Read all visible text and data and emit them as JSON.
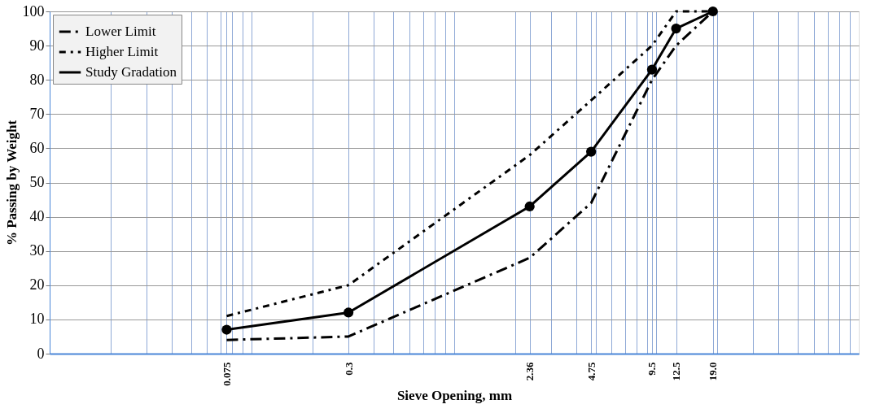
{
  "chart_data": {
    "type": "line",
    "xlabel": "Sieve Opening, mm",
    "ylabel": "% Passing by Weight",
    "log": "x",
    "grid": true,
    "legend": "top left",
    "xlim": [
      0.01,
      100
    ],
    "ylim": [
      0,
      100
    ],
    "yticks": [
      0,
      10,
      20,
      30,
      40,
      50,
      60,
      70,
      80,
      90,
      100
    ],
    "xticks": [
      {
        "value": 0.02,
        "label": null
      },
      {
        "value": 0.03,
        "label": null
      },
      {
        "value": 0.04,
        "label": null
      },
      {
        "value": 0.05,
        "label": null
      },
      {
        "value": 0.06,
        "label": null
      },
      {
        "value": 0.07,
        "label": null
      },
      {
        "value": 0.075,
        "label": "0.075"
      },
      {
        "value": 0.08,
        "label": null
      },
      {
        "value": 0.09,
        "label": null
      },
      {
        "value": 0.1,
        "label": null
      },
      {
        "value": 0.2,
        "label": null
      },
      {
        "value": 0.3,
        "label": "0.3"
      },
      {
        "value": 0.4,
        "label": null
      },
      {
        "value": 0.5,
        "label": null
      },
      {
        "value": 0.6,
        "label": null
      },
      {
        "value": 0.7,
        "label": null
      },
      {
        "value": 0.8,
        "label": null
      },
      {
        "value": 0.9,
        "label": null
      },
      {
        "value": 1,
        "label": null
      },
      {
        "value": 2,
        "label": null
      },
      {
        "value": 2.36,
        "label": "2.36"
      },
      {
        "value": 3,
        "label": null
      },
      {
        "value": 4,
        "label": null
      },
      {
        "value": 4.75,
        "label": "4.75"
      },
      {
        "value": 5,
        "label": null
      },
      {
        "value": 6,
        "label": null
      },
      {
        "value": 7,
        "label": null
      },
      {
        "value": 8,
        "label": null
      },
      {
        "value": 9,
        "label": null
      },
      {
        "value": 9.5,
        "label": "9.5"
      },
      {
        "value": 10,
        "label": null
      },
      {
        "value": 12.5,
        "label": "12.5"
      },
      {
        "value": 19,
        "label": "19.0"
      },
      {
        "value": 20,
        "label": null
      },
      {
        "value": 30,
        "label": null
      },
      {
        "value": 40,
        "label": null
      },
      {
        "value": 50,
        "label": null
      },
      {
        "value": 60,
        "label": null
      },
      {
        "value": 70,
        "label": null
      },
      {
        "value": 80,
        "label": null
      },
      {
        "value": 90,
        "label": null
      }
    ],
    "x": [
      0.075,
      0.3,
      2.36,
      4.75,
      9.5,
      12.5,
      19
    ],
    "series": [
      {
        "name": "Lower Limit",
        "color": "#000000",
        "line_style": "dashed",
        "marker": "none",
        "values": [
          4,
          5,
          28,
          44,
          80,
          90,
          100
        ]
      },
      {
        "name": "Higher Limit",
        "color": "#000000",
        "line_style": "dotted",
        "marker": "none",
        "values": [
          11,
          20,
          58,
          74,
          90,
          100,
          100
        ]
      },
      {
        "name": "Study Gradation",
        "color": "#000000",
        "line_style": "solid",
        "marker": "circle",
        "values": [
          7,
          12,
          43,
          59,
          83,
          95,
          100
        ]
      }
    ]
  }
}
